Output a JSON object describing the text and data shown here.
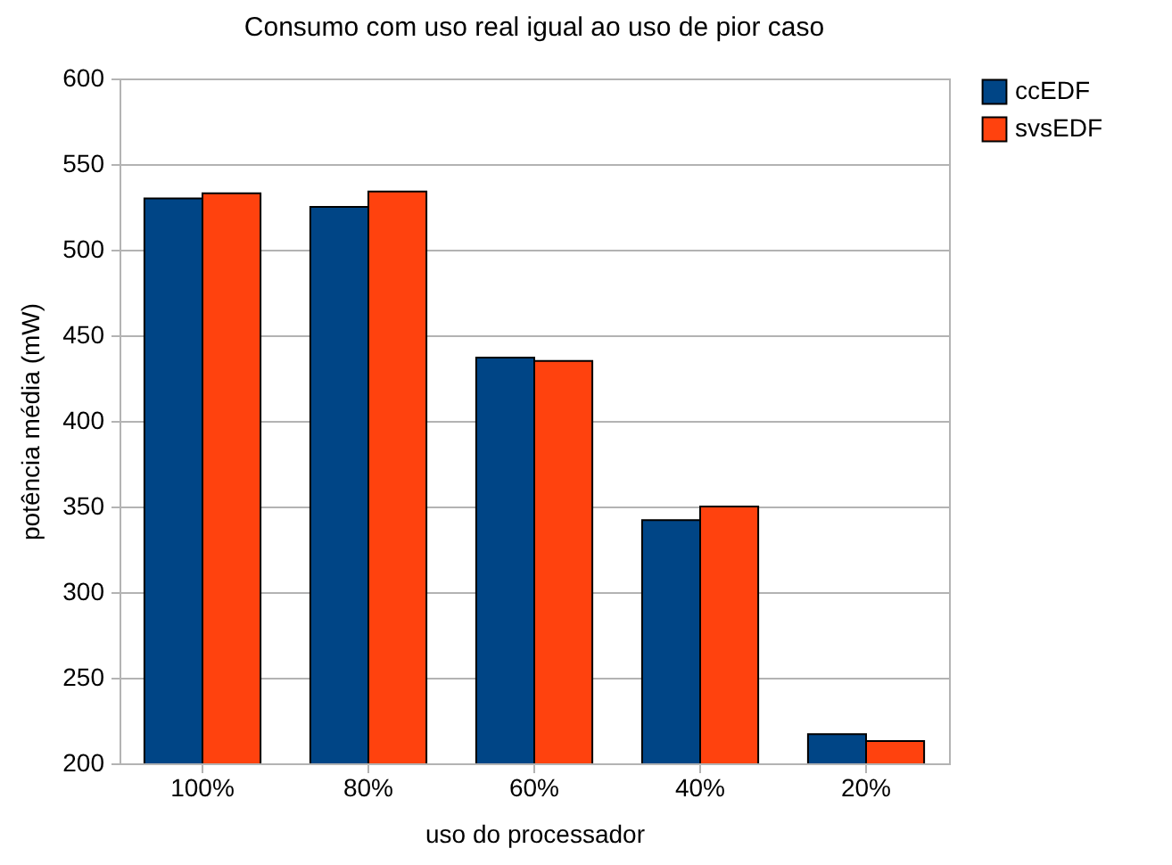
{
  "chart_data": {
    "type": "bar",
    "title": "Consumo com uso real igual ao uso de pior caso",
    "xlabel": "uso do processador",
    "ylabel": "potência média (mW)",
    "categories": [
      "100%",
      "80%",
      "60%",
      "40%",
      "20%"
    ],
    "series": [
      {
        "name": "ccEDF",
        "color": "#004586",
        "values": [
          530,
          525,
          437,
          342,
          217
        ]
      },
      {
        "name": "svsEDF",
        "color": "#ff420e",
        "values": [
          533,
          534,
          435,
          350,
          213
        ]
      }
    ],
    "ylim": [
      200,
      600
    ],
    "yticks": [
      200,
      250,
      300,
      350,
      400,
      450,
      500,
      550,
      600
    ],
    "grid": "y",
    "legend": "right"
  }
}
